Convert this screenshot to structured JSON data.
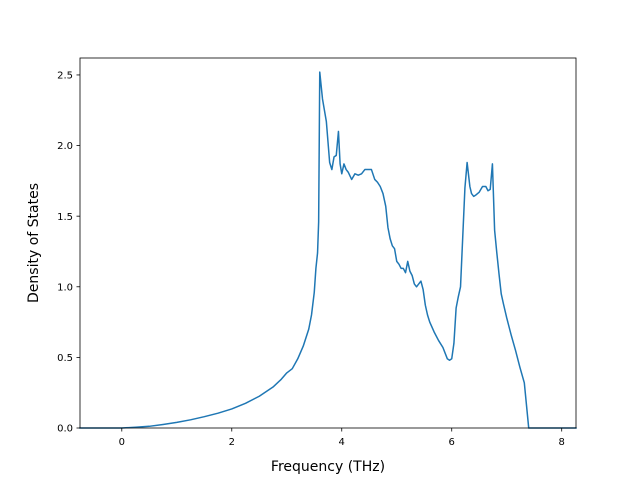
{
  "chart_data": {
    "type": "line",
    "xlabel": "Frequency (THz)",
    "ylabel": "Density of States",
    "xlim": [
      -0.76,
      8.26
    ],
    "ylim": [
      0.0,
      2.62
    ],
    "xticks": [
      0,
      2,
      4,
      6,
      8
    ],
    "yticks": [
      0.0,
      0.5,
      1.0,
      1.5,
      2.0,
      2.5
    ],
    "xtick_labels": [
      "0",
      "2",
      "4",
      "6",
      "8"
    ],
    "ytick_labels": [
      "0.0",
      "0.5",
      "1.0",
      "1.5",
      "2.0",
      "2.5"
    ],
    "grid": false,
    "colors": {
      "line": "#1f77b4",
      "axes": "#000000",
      "background": "#ffffff"
    },
    "series": [
      {
        "x": [
          -0.76,
          0.0,
          0.25,
          0.5,
          0.75,
          1.0,
          1.25,
          1.5,
          1.75,
          2.0,
          2.25,
          2.5,
          2.75,
          2.9,
          3.0,
          3.1,
          3.2,
          3.3,
          3.4,
          3.45,
          3.5,
          3.53,
          3.56,
          3.58,
          3.6,
          3.65,
          3.72,
          3.78,
          3.82,
          3.86,
          3.9,
          3.94,
          3.97,
          4.0,
          4.04,
          4.08,
          4.12,
          4.18,
          4.24,
          4.3,
          4.36,
          4.42,
          4.48,
          4.54,
          4.6,
          4.65,
          4.7,
          4.75,
          4.8,
          4.84,
          4.88,
          4.92,
          4.96,
          5.0,
          5.04,
          5.08,
          5.12,
          5.16,
          5.2,
          5.24,
          5.28,
          5.32,
          5.36,
          5.4,
          5.44,
          5.48,
          5.52,
          5.56,
          5.6,
          5.68,
          5.76,
          5.84,
          5.92,
          5.96,
          6.0,
          6.04,
          6.08,
          6.12,
          6.16,
          6.2,
          6.24,
          6.28,
          6.33,
          6.36,
          6.4,
          6.44,
          6.5,
          6.56,
          6.62,
          6.66,
          6.7,
          6.74,
          6.78,
          6.82,
          6.86,
          6.9,
          6.94,
          7.0,
          7.08,
          7.16,
          7.24,
          7.32,
          7.4,
          7.45,
          7.5,
          7.55,
          8.26
        ],
        "y": [
          0.0,
          0.0,
          0.005,
          0.012,
          0.025,
          0.04,
          0.058,
          0.08,
          0.105,
          0.135,
          0.175,
          0.225,
          0.29,
          0.345,
          0.39,
          0.42,
          0.49,
          0.58,
          0.7,
          0.8,
          0.96,
          1.13,
          1.24,
          1.46,
          2.52,
          2.33,
          2.17,
          1.88,
          1.83,
          1.92,
          1.93,
          2.1,
          1.87,
          1.8,
          1.87,
          1.83,
          1.81,
          1.76,
          1.8,
          1.79,
          1.8,
          1.83,
          1.83,
          1.83,
          1.76,
          1.74,
          1.71,
          1.66,
          1.57,
          1.42,
          1.34,
          1.29,
          1.27,
          1.18,
          1.16,
          1.13,
          1.13,
          1.1,
          1.18,
          1.11,
          1.08,
          1.02,
          1.0,
          1.02,
          1.04,
          0.98,
          0.87,
          0.8,
          0.75,
          0.68,
          0.62,
          0.57,
          0.49,
          0.48,
          0.49,
          0.6,
          0.85,
          0.93,
          1.0,
          1.35,
          1.7,
          1.88,
          1.71,
          1.66,
          1.64,
          1.65,
          1.67,
          1.71,
          1.71,
          1.68,
          1.69,
          1.87,
          1.4,
          1.24,
          1.09,
          0.95,
          0.88,
          0.78,
          0.66,
          0.55,
          0.43,
          0.32,
          0.0,
          0.0,
          0.0,
          0.0,
          0.0
        ]
      }
    ]
  }
}
